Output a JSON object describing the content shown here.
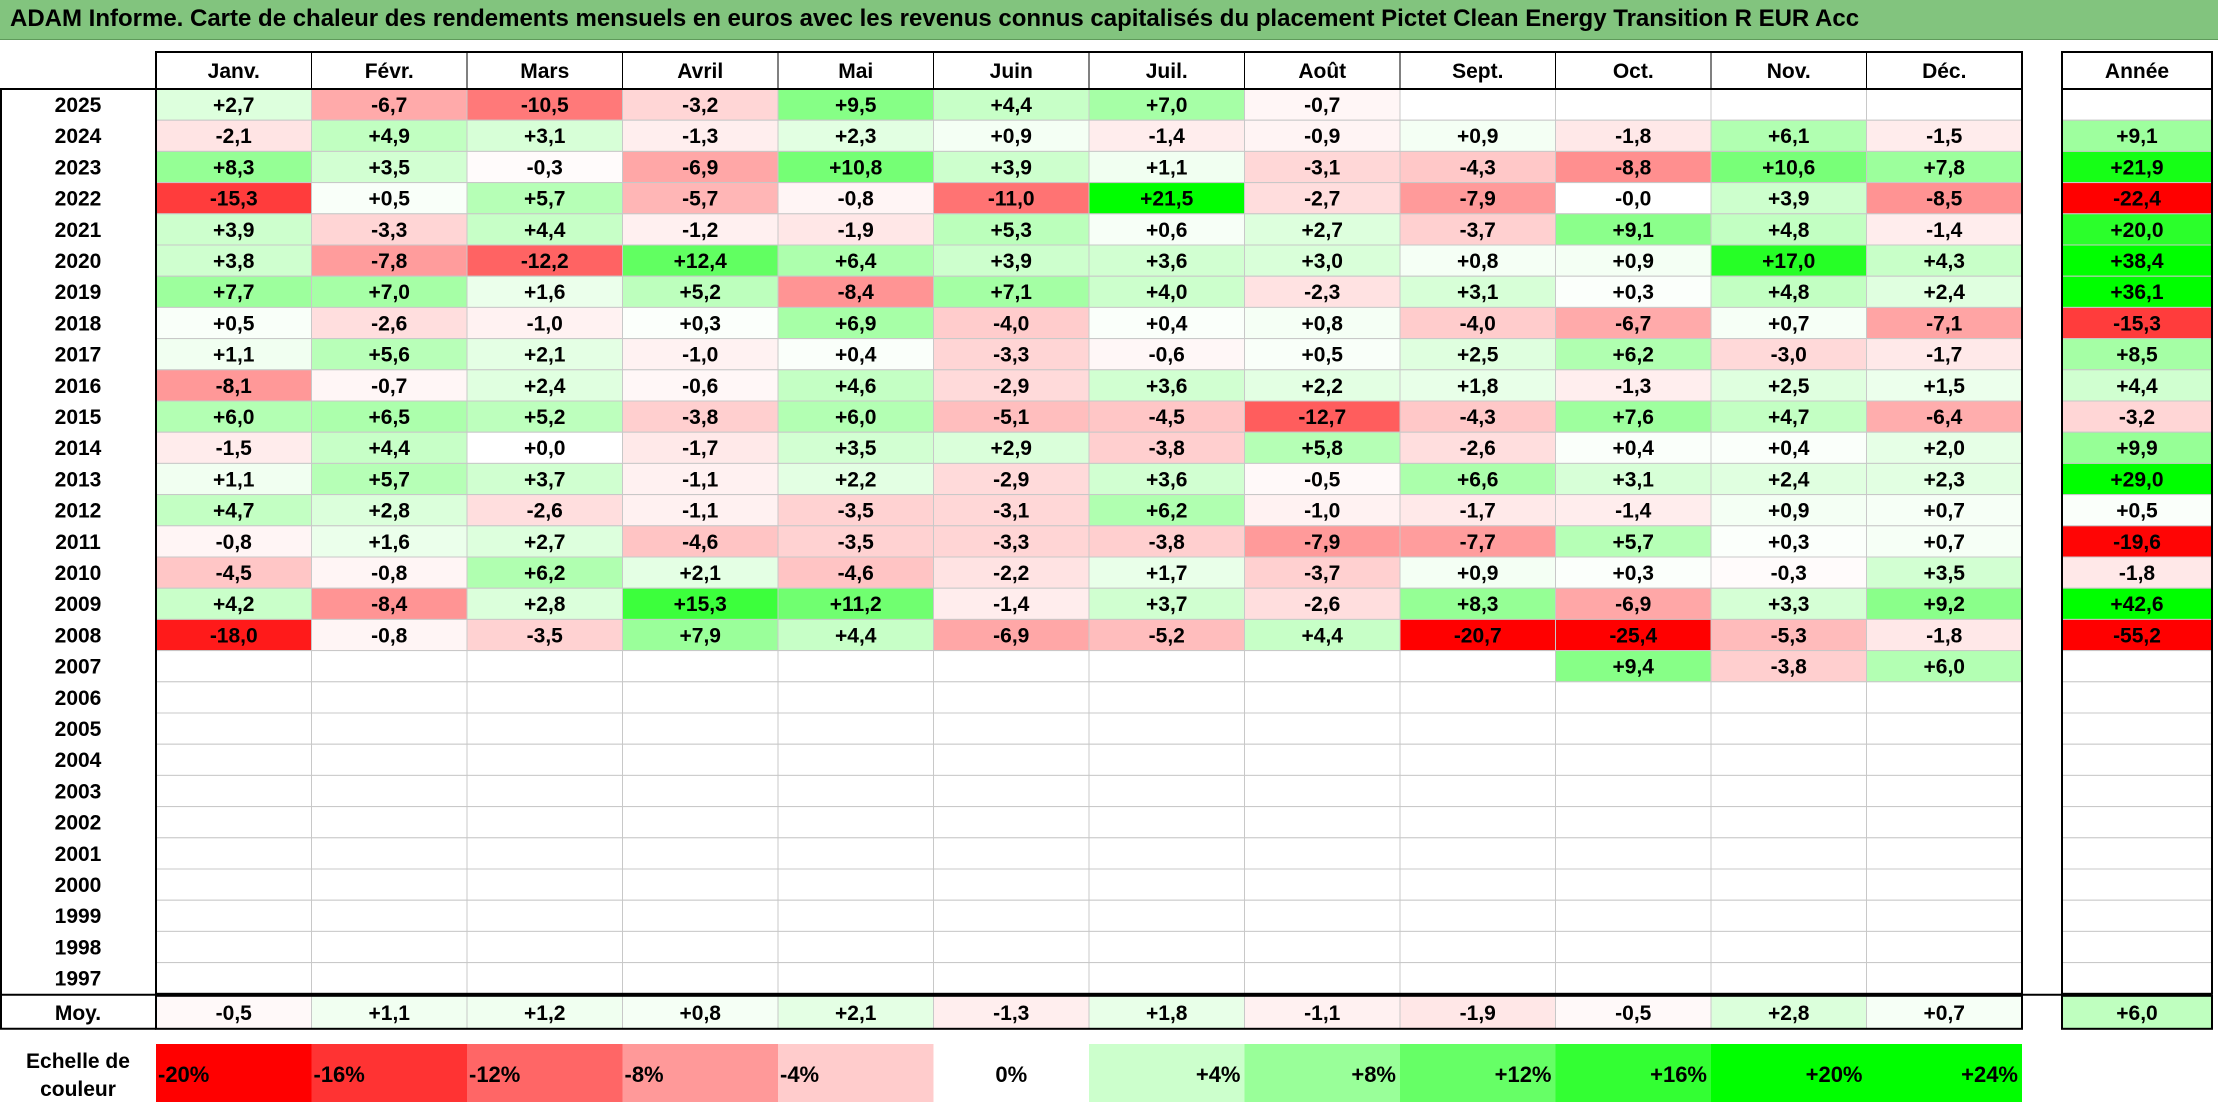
{
  "title": "ADAM Informe. Carte de chaleur des rendements mensuels en euros avec les revenus connus capitalisés du placement Pictet Clean Energy Transition R EUR Acc",
  "chart_data": {
    "type": "heatmap",
    "title": "ADAM Informe. Carte de chaleur des rendements mensuels en euros avec les revenus connus capitalisés du placement Pictet Clean Energy Transition R EUR Acc",
    "months": [
      "Janv.",
      "Févr.",
      "Mars",
      "Avril",
      "Mai",
      "Juin",
      "Juil.",
      "Août",
      "Sept.",
      "Oct.",
      "Nov.",
      "Déc."
    ],
    "year_header": "Année",
    "rows": [
      {
        "year": "2025",
        "months": [
          "+2,7",
          "-6,7",
          "-10,5",
          "-3,2",
          "+9,5",
          "+4,4",
          "+7,0",
          "-0,7",
          null,
          null,
          null,
          null
        ],
        "annual": null
      },
      {
        "year": "2024",
        "months": [
          "-2,1",
          "+4,9",
          "+3,1",
          "-1,3",
          "+2,3",
          "+0,9",
          "-1,4",
          "-0,9",
          "+0,9",
          "-1,8",
          "+6,1",
          "-1,5"
        ],
        "annual": "+9,1"
      },
      {
        "year": "2023",
        "months": [
          "+8,3",
          "+3,5",
          "-0,3",
          "-6,9",
          "+10,8",
          "+3,9",
          "+1,1",
          "-3,1",
          "-4,3",
          "-8,8",
          "+10,6",
          "+7,8"
        ],
        "annual": "+21,9"
      },
      {
        "year": "2022",
        "months": [
          "-15,3",
          "+0,5",
          "+5,7",
          "-5,7",
          "-0,8",
          "-11,0",
          "+21,5",
          "-2,7",
          "-7,9",
          "-0,0",
          "+3,9",
          "-8,5"
        ],
        "annual": "-22,4"
      },
      {
        "year": "2021",
        "months": [
          "+3,9",
          "-3,3",
          "+4,4",
          "-1,2",
          "-1,9",
          "+5,3",
          "+0,6",
          "+2,7",
          "-3,7",
          "+9,1",
          "+4,8",
          "-1,4"
        ],
        "annual": "+20,0"
      },
      {
        "year": "2020",
        "months": [
          "+3,8",
          "-7,8",
          "-12,2",
          "+12,4",
          "+6,4",
          "+3,9",
          "+3,6",
          "+3,0",
          "+0,8",
          "+0,9",
          "+17,0",
          "+4,3"
        ],
        "annual": "+38,4"
      },
      {
        "year": "2019",
        "months": [
          "+7,7",
          "+7,0",
          "+1,6",
          "+5,2",
          "-8,4",
          "+7,1",
          "+4,0",
          "-2,3",
          "+3,1",
          "+0,3",
          "+4,8",
          "+2,4"
        ],
        "annual": "+36,1"
      },
      {
        "year": "2018",
        "months": [
          "+0,5",
          "-2,6",
          "-1,0",
          "+0,3",
          "+6,9",
          "-4,0",
          "+0,4",
          "+0,8",
          "-4,0",
          "-6,7",
          "+0,7",
          "-7,1"
        ],
        "annual": "-15,3"
      },
      {
        "year": "2017",
        "months": [
          "+1,1",
          "+5,6",
          "+2,1",
          "-1,0",
          "+0,4",
          "-3,3",
          "-0,6",
          "+0,5",
          "+2,5",
          "+6,2",
          "-3,0",
          "-1,7"
        ],
        "annual": "+8,5"
      },
      {
        "year": "2016",
        "months": [
          "-8,1",
          "-0,7",
          "+2,4",
          "-0,6",
          "+4,6",
          "-2,9",
          "+3,6",
          "+2,2",
          "+1,8",
          "-1,3",
          "+2,5",
          "+1,5"
        ],
        "annual": "+4,4"
      },
      {
        "year": "2015",
        "months": [
          "+6,0",
          "+6,5",
          "+5,2",
          "-3,8",
          "+6,0",
          "-5,1",
          "-4,5",
          "-12,7",
          "-4,3",
          "+7,6",
          "+4,7",
          "-6,4"
        ],
        "annual": "-3,2"
      },
      {
        "year": "2014",
        "months": [
          "-1,5",
          "+4,4",
          "+0,0",
          "-1,7",
          "+3,5",
          "+2,9",
          "-3,8",
          "+5,8",
          "-2,6",
          "+0,4",
          "+0,4",
          "+2,0"
        ],
        "annual": "+9,9"
      },
      {
        "year": "2013",
        "months": [
          "+1,1",
          "+5,7",
          "+3,7",
          "-1,1",
          "+2,2",
          "-2,9",
          "+3,6",
          "-0,5",
          "+6,6",
          "+3,1",
          "+2,4",
          "+2,3"
        ],
        "annual": "+29,0"
      },
      {
        "year": "2012",
        "months": [
          "+4,7",
          "+2,8",
          "-2,6",
          "-1,1",
          "-3,5",
          "-3,1",
          "+6,2",
          "-1,0",
          "-1,7",
          "-1,4",
          "+0,9",
          "+0,7"
        ],
        "annual": "+0,5"
      },
      {
        "year": "2011",
        "months": [
          "-0,8",
          "+1,6",
          "+2,7",
          "-4,6",
          "-3,5",
          "-3,3",
          "-3,8",
          "-7,9",
          "-7,7",
          "+5,7",
          "+0,3",
          "+0,7"
        ],
        "annual": "-19,6"
      },
      {
        "year": "2010",
        "months": [
          "-4,5",
          "-0,8",
          "+6,2",
          "+2,1",
          "-4,6",
          "-2,2",
          "+1,7",
          "-3,7",
          "+0,9",
          "+0,3",
          "-0,3",
          "+3,5"
        ],
        "annual": "-1,8"
      },
      {
        "year": "2009",
        "months": [
          "+4,2",
          "-8,4",
          "+2,8",
          "+15,3",
          "+11,2",
          "-1,4",
          "+3,7",
          "-2,6",
          "+8,3",
          "-6,9",
          "+3,3",
          "+9,2"
        ],
        "annual": "+42,6"
      },
      {
        "year": "2008",
        "months": [
          "-18,0",
          "-0,8",
          "-3,5",
          "+7,9",
          "+4,4",
          "-6,9",
          "-5,2",
          "+4,4",
          "-20,7",
          "-25,4",
          "-5,3",
          "-1,8"
        ],
        "annual": "-55,2"
      },
      {
        "year": "2007",
        "months": [
          null,
          null,
          null,
          null,
          null,
          null,
          null,
          null,
          null,
          "+9,4",
          "-3,8",
          "+6,0"
        ],
        "annual": null
      },
      {
        "year": "2006",
        "months": [
          null,
          null,
          null,
          null,
          null,
          null,
          null,
          null,
          null,
          null,
          null,
          null
        ],
        "annual": null
      },
      {
        "year": "2005",
        "months": [
          null,
          null,
          null,
          null,
          null,
          null,
          null,
          null,
          null,
          null,
          null,
          null
        ],
        "annual": null
      },
      {
        "year": "2004",
        "months": [
          null,
          null,
          null,
          null,
          null,
          null,
          null,
          null,
          null,
          null,
          null,
          null
        ],
        "annual": null
      },
      {
        "year": "2003",
        "months": [
          null,
          null,
          null,
          null,
          null,
          null,
          null,
          null,
          null,
          null,
          null,
          null
        ],
        "annual": null
      },
      {
        "year": "2002",
        "months": [
          null,
          null,
          null,
          null,
          null,
          null,
          null,
          null,
          null,
          null,
          null,
          null
        ],
        "annual": null
      },
      {
        "year": "2001",
        "months": [
          null,
          null,
          null,
          null,
          null,
          null,
          null,
          null,
          null,
          null,
          null,
          null
        ],
        "annual": null
      },
      {
        "year": "2000",
        "months": [
          null,
          null,
          null,
          null,
          null,
          null,
          null,
          null,
          null,
          null,
          null,
          null
        ],
        "annual": null
      },
      {
        "year": "1999",
        "months": [
          null,
          null,
          null,
          null,
          null,
          null,
          null,
          null,
          null,
          null,
          null,
          null
        ],
        "annual": null
      },
      {
        "year": "1998",
        "months": [
          null,
          null,
          null,
          null,
          null,
          null,
          null,
          null,
          null,
          null,
          null,
          null
        ],
        "annual": null
      },
      {
        "year": "1997",
        "months": [
          null,
          null,
          null,
          null,
          null,
          null,
          null,
          null,
          null,
          null,
          null,
          null
        ],
        "annual": null
      }
    ],
    "average": {
      "label": "Moy.",
      "months": [
        "-0,5",
        "+1,1",
        "+1,2",
        "+0,8",
        "+2,1",
        "-1,3",
        "+1,8",
        "-1,1",
        "-1,9",
        "-0,5",
        "+2,8",
        "+0,7"
      ],
      "annual": "+6,0"
    },
    "color_scale": {
      "label_line1": "Echelle de",
      "label_line2": "couleur",
      "labels": [
        "-20%",
        "-16%",
        "-12%",
        "-8%",
        "-4%",
        "0%",
        "+4%",
        "+8%",
        "+12%",
        "+16%",
        "+20%",
        "+24%"
      ],
      "colors": [
        "#ff0000",
        "#ff3333",
        "#ff6666",
        "#ff9999",
        "#ffcccc",
        "#ffffff",
        "#ccffcc",
        "#99ff99",
        "#66ff66",
        "#33ff33",
        "#00ff00",
        "#00ff00"
      ]
    },
    "colors": {
      "negative_max": "#ff0000",
      "neutral": "#ffffff",
      "positive_max": "#00ff00",
      "title_bar": "#82c47e"
    }
  }
}
